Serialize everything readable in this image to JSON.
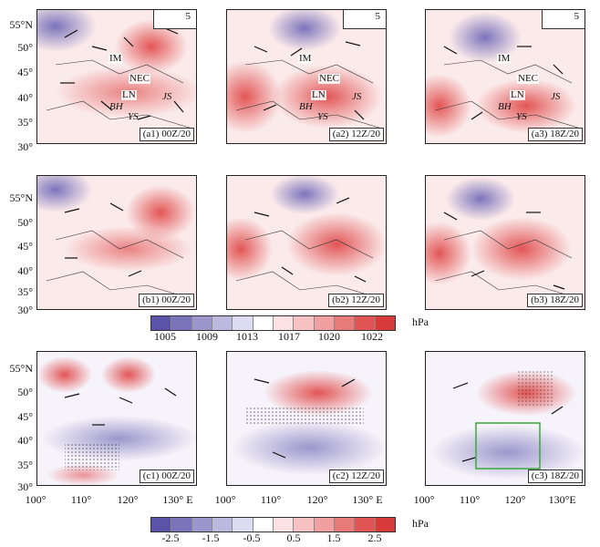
{
  "latitude_labels": [
    "55°N",
    "50°",
    "45°",
    "40°",
    "35°",
    "30°"
  ],
  "longitude_labels": [
    "100°",
    "110°",
    "120°",
    "130° E"
  ],
  "longitude_labels_alt": [
    "100°",
    "110°",
    "120°",
    "130°",
    "E"
  ],
  "vector_scale_label": "5",
  "regions": {
    "im": "IM",
    "nec": "NEC",
    "ln": "LN",
    "bh": "BH",
    "ys": "YS",
    "js": "JS"
  },
  "panels": [
    {
      "id": "a1",
      "label": "(a1) 00Z/20"
    },
    {
      "id": "a2",
      "label": "(a2) 12Z/20"
    },
    {
      "id": "a3",
      "label": "(a3) 18Z/20"
    },
    {
      "id": "b1",
      "label": "(b1) 00Z/20"
    },
    {
      "id": "b2",
      "label": "(b2) 12Z/20"
    },
    {
      "id": "b3",
      "label": "(b3) 18Z/20"
    },
    {
      "id": "c1",
      "label": "(c1) 00Z/20"
    },
    {
      "id": "c2",
      "label": "(c2) 12Z/20"
    },
    {
      "id": "c3",
      "label": "(c3) 18Z/20"
    }
  ],
  "colorbar_pressure": {
    "unit": "hPa",
    "ticks": [
      "1005",
      "1009",
      "1013",
      "1017",
      "1020",
      "1022"
    ],
    "colors": [
      "#5b53a8",
      "#7b74bb",
      "#9c96cc",
      "#bdb9de",
      "#dedcf0",
      "#ffffff",
      "#fbe1e1",
      "#f6c2c2",
      "#f0a0a0",
      "#e97a7a",
      "#e25555",
      "#d93a3a"
    ]
  },
  "colorbar_anomaly": {
    "unit": "hPa",
    "ticks": [
      "-2.5",
      "-1.5",
      "-0.5",
      "0.5",
      "1.5",
      "2.5"
    ],
    "colors": [
      "#5b53a8",
      "#7b74bb",
      "#9c96cc",
      "#bdb9de",
      "#dedcf0",
      "#ffffff",
      "#fbe1e1",
      "#f6c2c2",
      "#f0a0a0",
      "#e97a7a",
      "#e25555",
      "#d93a3a"
    ]
  }
}
